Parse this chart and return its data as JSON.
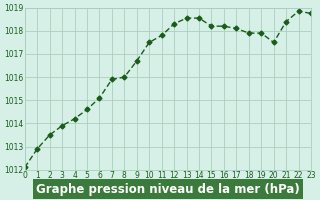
{
  "x": [
    0,
    1,
    2,
    3,
    4,
    5,
    6,
    7,
    8,
    9,
    10,
    11,
    12,
    13,
    14,
    15,
    16,
    17,
    18,
    19,
    20,
    21,
    22,
    23
  ],
  "y": [
    1012.1,
    1012.9,
    1013.5,
    1013.9,
    1014.2,
    1014.6,
    1015.1,
    1015.9,
    1016.0,
    1016.7,
    1017.5,
    1017.8,
    1018.3,
    1018.55,
    1018.55,
    1018.2,
    1018.2,
    1018.1,
    1017.9,
    1017.9,
    1017.5,
    1018.4,
    1018.85,
    1018.75
  ],
  "xlabel": "Graphe pression niveau de la mer (hPa)",
  "ylim": [
    1012,
    1019
  ],
  "xlim": [
    0,
    23
  ],
  "yticks": [
    1012,
    1013,
    1014,
    1015,
    1016,
    1017,
    1018,
    1019
  ],
  "xticks": [
    0,
    1,
    2,
    3,
    4,
    5,
    6,
    7,
    8,
    9,
    10,
    11,
    12,
    13,
    14,
    15,
    16,
    17,
    18,
    19,
    20,
    21,
    22,
    23
  ],
  "line_color": "#1a5c1a",
  "marker_color": "#1a5c1a",
  "bg_color": "#d6f0e8",
  "grid_color": "#aacfbf",
  "xlabel_bg": "#3a7a3a",
  "xlabel_color": "#ffffff",
  "xlabel_fontsize": 8.5
}
